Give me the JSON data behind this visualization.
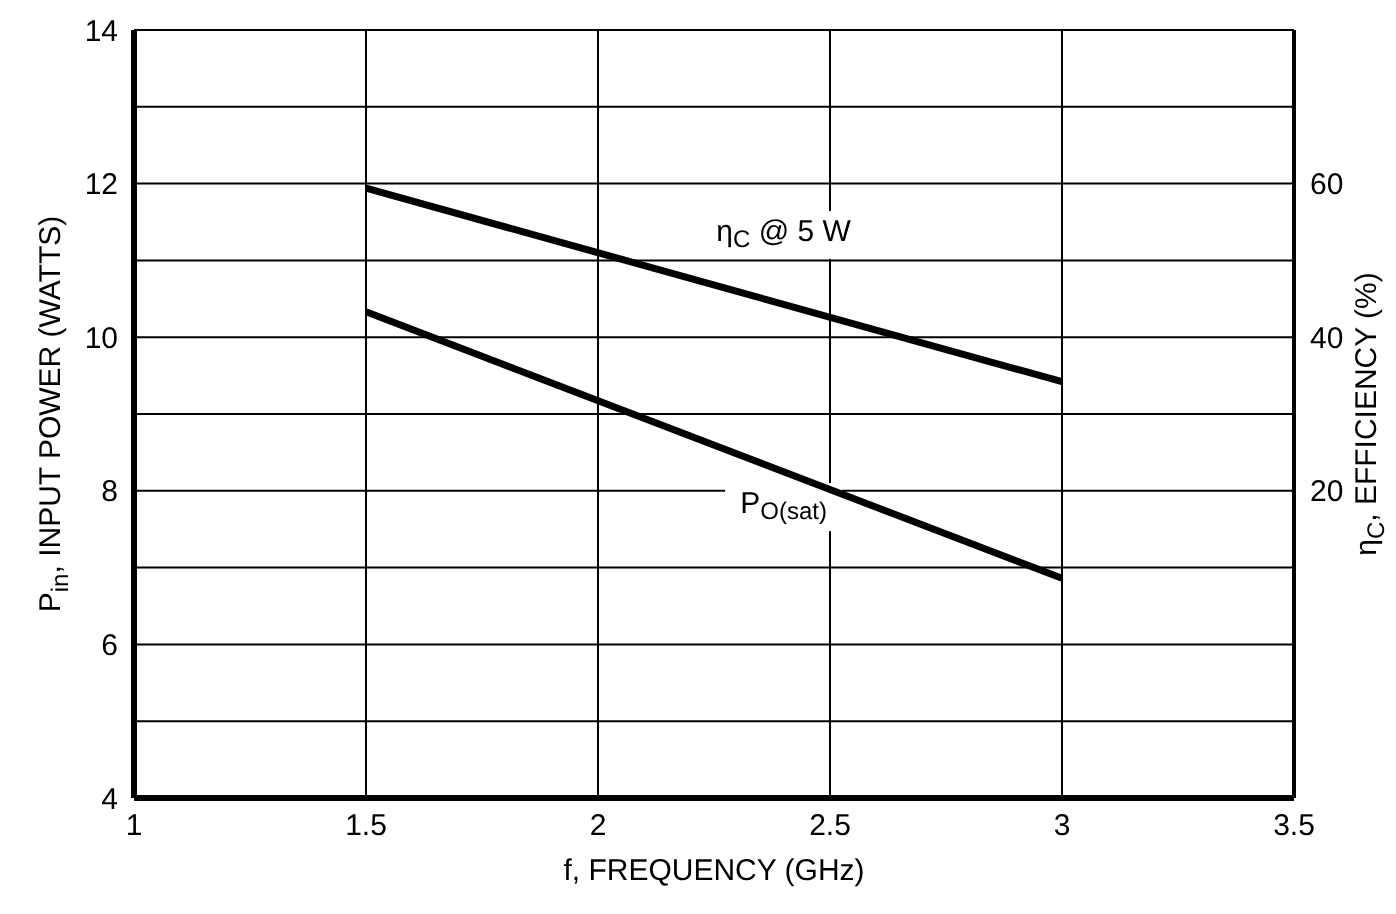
{
  "chart_data": {
    "type": "line",
    "xlabel": "f, FREQUENCY (GHz)",
    "ylabel": "P$_{in}$, INPUT POWER (WATTS)",
    "y2label": "η$_{C}$, EFFICIENCY (%)",
    "x": [
      1.5,
      3
    ],
    "xlim": [
      1,
      3.5
    ],
    "xticks": [
      1,
      1.5,
      2,
      2.5,
      3,
      3.5
    ],
    "ylim": [
      4,
      14
    ],
    "yticks": [
      4,
      {
        "value": 5,
        "label": null
      },
      6,
      {
        "value": 7,
        "label": null
      },
      8,
      {
        "value": 9,
        "label": null
      },
      10,
      {
        "value": 11,
        "label": null
      },
      12,
      {
        "value": 13,
        "label": null
      },
      14
    ],
    "y2lim": [
      -20,
      80
    ],
    "y2ticks": [
      20,
      40,
      60
    ],
    "grid": true,
    "legend": false,
    "marker": "none",
    "line_style": "solid",
    "series": [
      {
        "name": "η$_{C}$ @ 5 W",
        "color": "#000000",
        "axis": "y2",
        "values": [
          59.4,
          34.2
        ]
      },
      {
        "name": "P$_{O(sat)}$",
        "color": "#000000",
        "values": [
          10.33,
          6.86
        ]
      }
    ]
  }
}
